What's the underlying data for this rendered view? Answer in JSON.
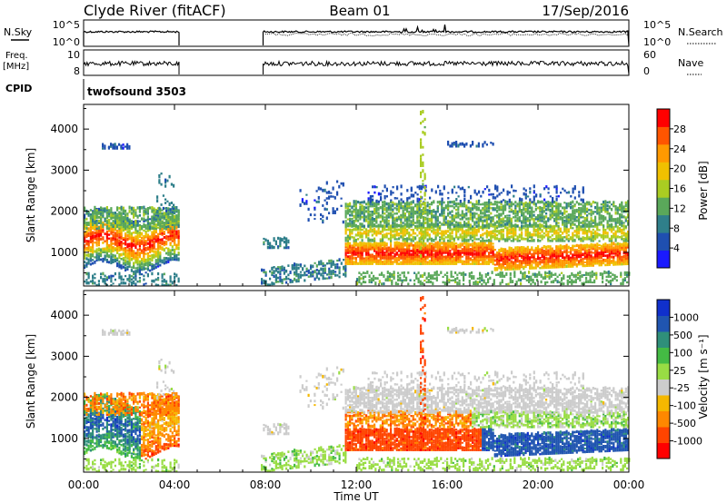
{
  "header": {
    "station": "Clyde River (fitACF)",
    "beam": "Beam 01",
    "date": "17/Sep/2016"
  },
  "params": {
    "nsky_label": "N.Sky",
    "freq_label": "Freq.",
    "freq_unit": "[MHz]",
    "cpid_label": "CPID",
    "nsearch_label": "N.Search",
    "nave_label": "Nave",
    "nsky_ticks": [
      "10^5",
      "10^0"
    ],
    "freq_ticks": [
      "10",
      "8"
    ],
    "nsearch_ticks": [
      "10^5",
      "10^0"
    ],
    "nave_ticks": [
      "60",
      "0"
    ],
    "cpid_value": "twofsound  3503"
  },
  "chart_data": [
    {
      "type": "heatmap",
      "panel": "power",
      "ylabel": "Slant Range [km]",
      "yticks": [
        1000,
        2000,
        3000,
        4000
      ],
      "ylim": [
        180,
        4600
      ],
      "colorbar_label": "Power [dB]",
      "colorbar_ticks": [
        "4",
        "8",
        "12",
        "16",
        "20",
        "24",
        "28"
      ],
      "colors": [
        "#1a1aff",
        "#1f4fb0",
        "#2f7f8a",
        "#5aa85a",
        "#aacc22",
        "#f0c000",
        "#ff9900",
        "#ff5500",
        "#ff0000"
      ]
    },
    {
      "type": "heatmap",
      "panel": "velocity",
      "ylabel": "Slant Range [km]",
      "yticks": [
        1000,
        2000,
        3000,
        4000
      ],
      "ylim": [
        180,
        4600
      ],
      "colorbar_label": "Velocity [m s⁻¹]",
      "colorbar_ticks": [
        "-1000",
        "-500",
        "-100",
        "-25",
        "25",
        "100",
        "500",
        "1000"
      ],
      "colors": [
        "#ff0000",
        "#ff4400",
        "#ff8800",
        "#f5b800",
        "#cccccc",
        "#99dd44",
        "#44bb44",
        "#2f8f7a",
        "#2055b0",
        "#1030cc"
      ]
    }
  ],
  "xaxis": {
    "label": "Time UT",
    "ticks": [
      "00:00",
      "04:00",
      "08:00",
      "12:00",
      "16:00",
      "20:00",
      "00:00"
    ]
  }
}
